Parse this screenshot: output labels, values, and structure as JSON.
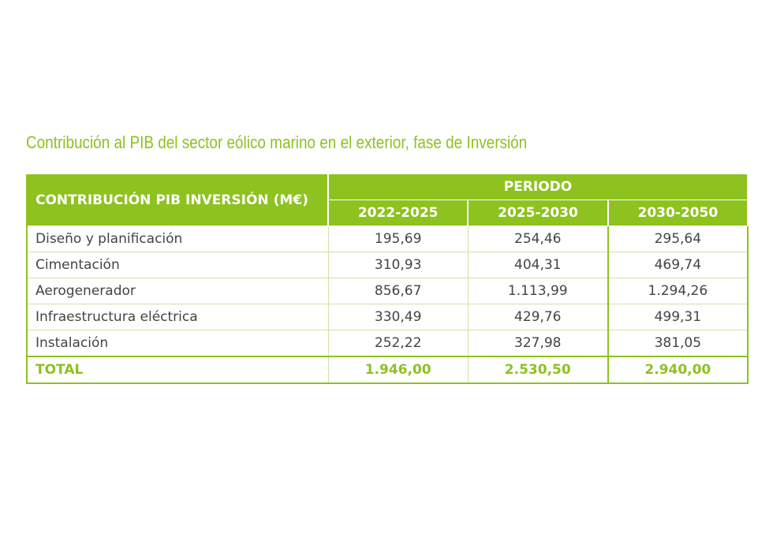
{
  "title": "Contribución al PIB del sector eólico marino en el exterior, fase de Inversión",
  "table": {
    "corner": "CONTRIBUCIÓN PIB INVERSIÓN (M€)",
    "group": "PERIODO",
    "columns": [
      "2022-2025",
      "2025-2030",
      "2030-2050"
    ],
    "rows": [
      [
        "Diseño y planificación",
        "195,69",
        "254,46",
        "295,64"
      ],
      [
        "Cimentación",
        "310,93",
        "404,31",
        "469,74"
      ],
      [
        "Aerogenerador",
        "856,67",
        "1.113,99",
        "1.294,26"
      ],
      [
        "Infraestructura eléctrica",
        "330,49",
        "429,76",
        "499,31"
      ],
      [
        "Instalación",
        "252,22",
        "327,98",
        "381,05"
      ]
    ],
    "total": [
      "TOTAL",
      "1.946,00",
      "2.530,50",
      "2.940,00"
    ]
  }
}
